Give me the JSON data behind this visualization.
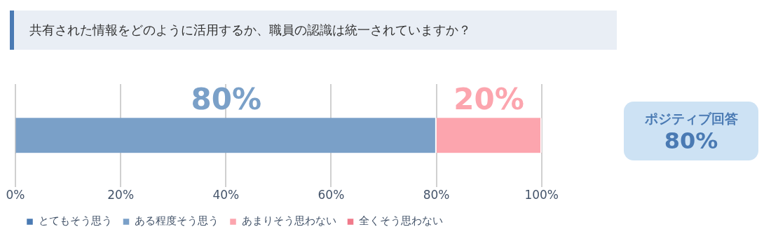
{
  "chart_data": {
    "type": "bar",
    "orientation": "horizontal",
    "stacked": true,
    "title": "共有された情報をどのように活用するか、職員の認識は統一されていますか？",
    "categories": [
      null
    ],
    "series": [
      {
        "name": "とてもそう思う",
        "color": "#4a7ab3",
        "values": [
          0
        ],
        "value_labels": [
          null
        ]
      },
      {
        "name": "ある程度そう思う",
        "color": "#7aa0c8",
        "values": [
          80
        ],
        "value_labels": [
          "80%"
        ]
      },
      {
        "name": "あまりそう思わない",
        "color": "#fca5ae",
        "values": [
          20
        ],
        "value_labels": [
          "20%"
        ]
      },
      {
        "name": "全くそう思わない",
        "color": "#f07a8a",
        "values": [
          0
        ],
        "value_labels": [
          null
        ]
      }
    ],
    "xlim": [
      0,
      100
    ],
    "xticks": [
      {
        "value": 0,
        "label": "0%"
      },
      {
        "value": 20,
        "label": "20%"
      },
      {
        "value": 40,
        "label": "40%"
      },
      {
        "value": 60,
        "label": "60%"
      },
      {
        "value": 80,
        "label": "80%"
      },
      {
        "value": 100,
        "label": "100%"
      }
    ],
    "grid": "x",
    "legend": "bottom",
    "annotations": [
      "ポジティブ回答",
      "80%"
    ]
  }
}
